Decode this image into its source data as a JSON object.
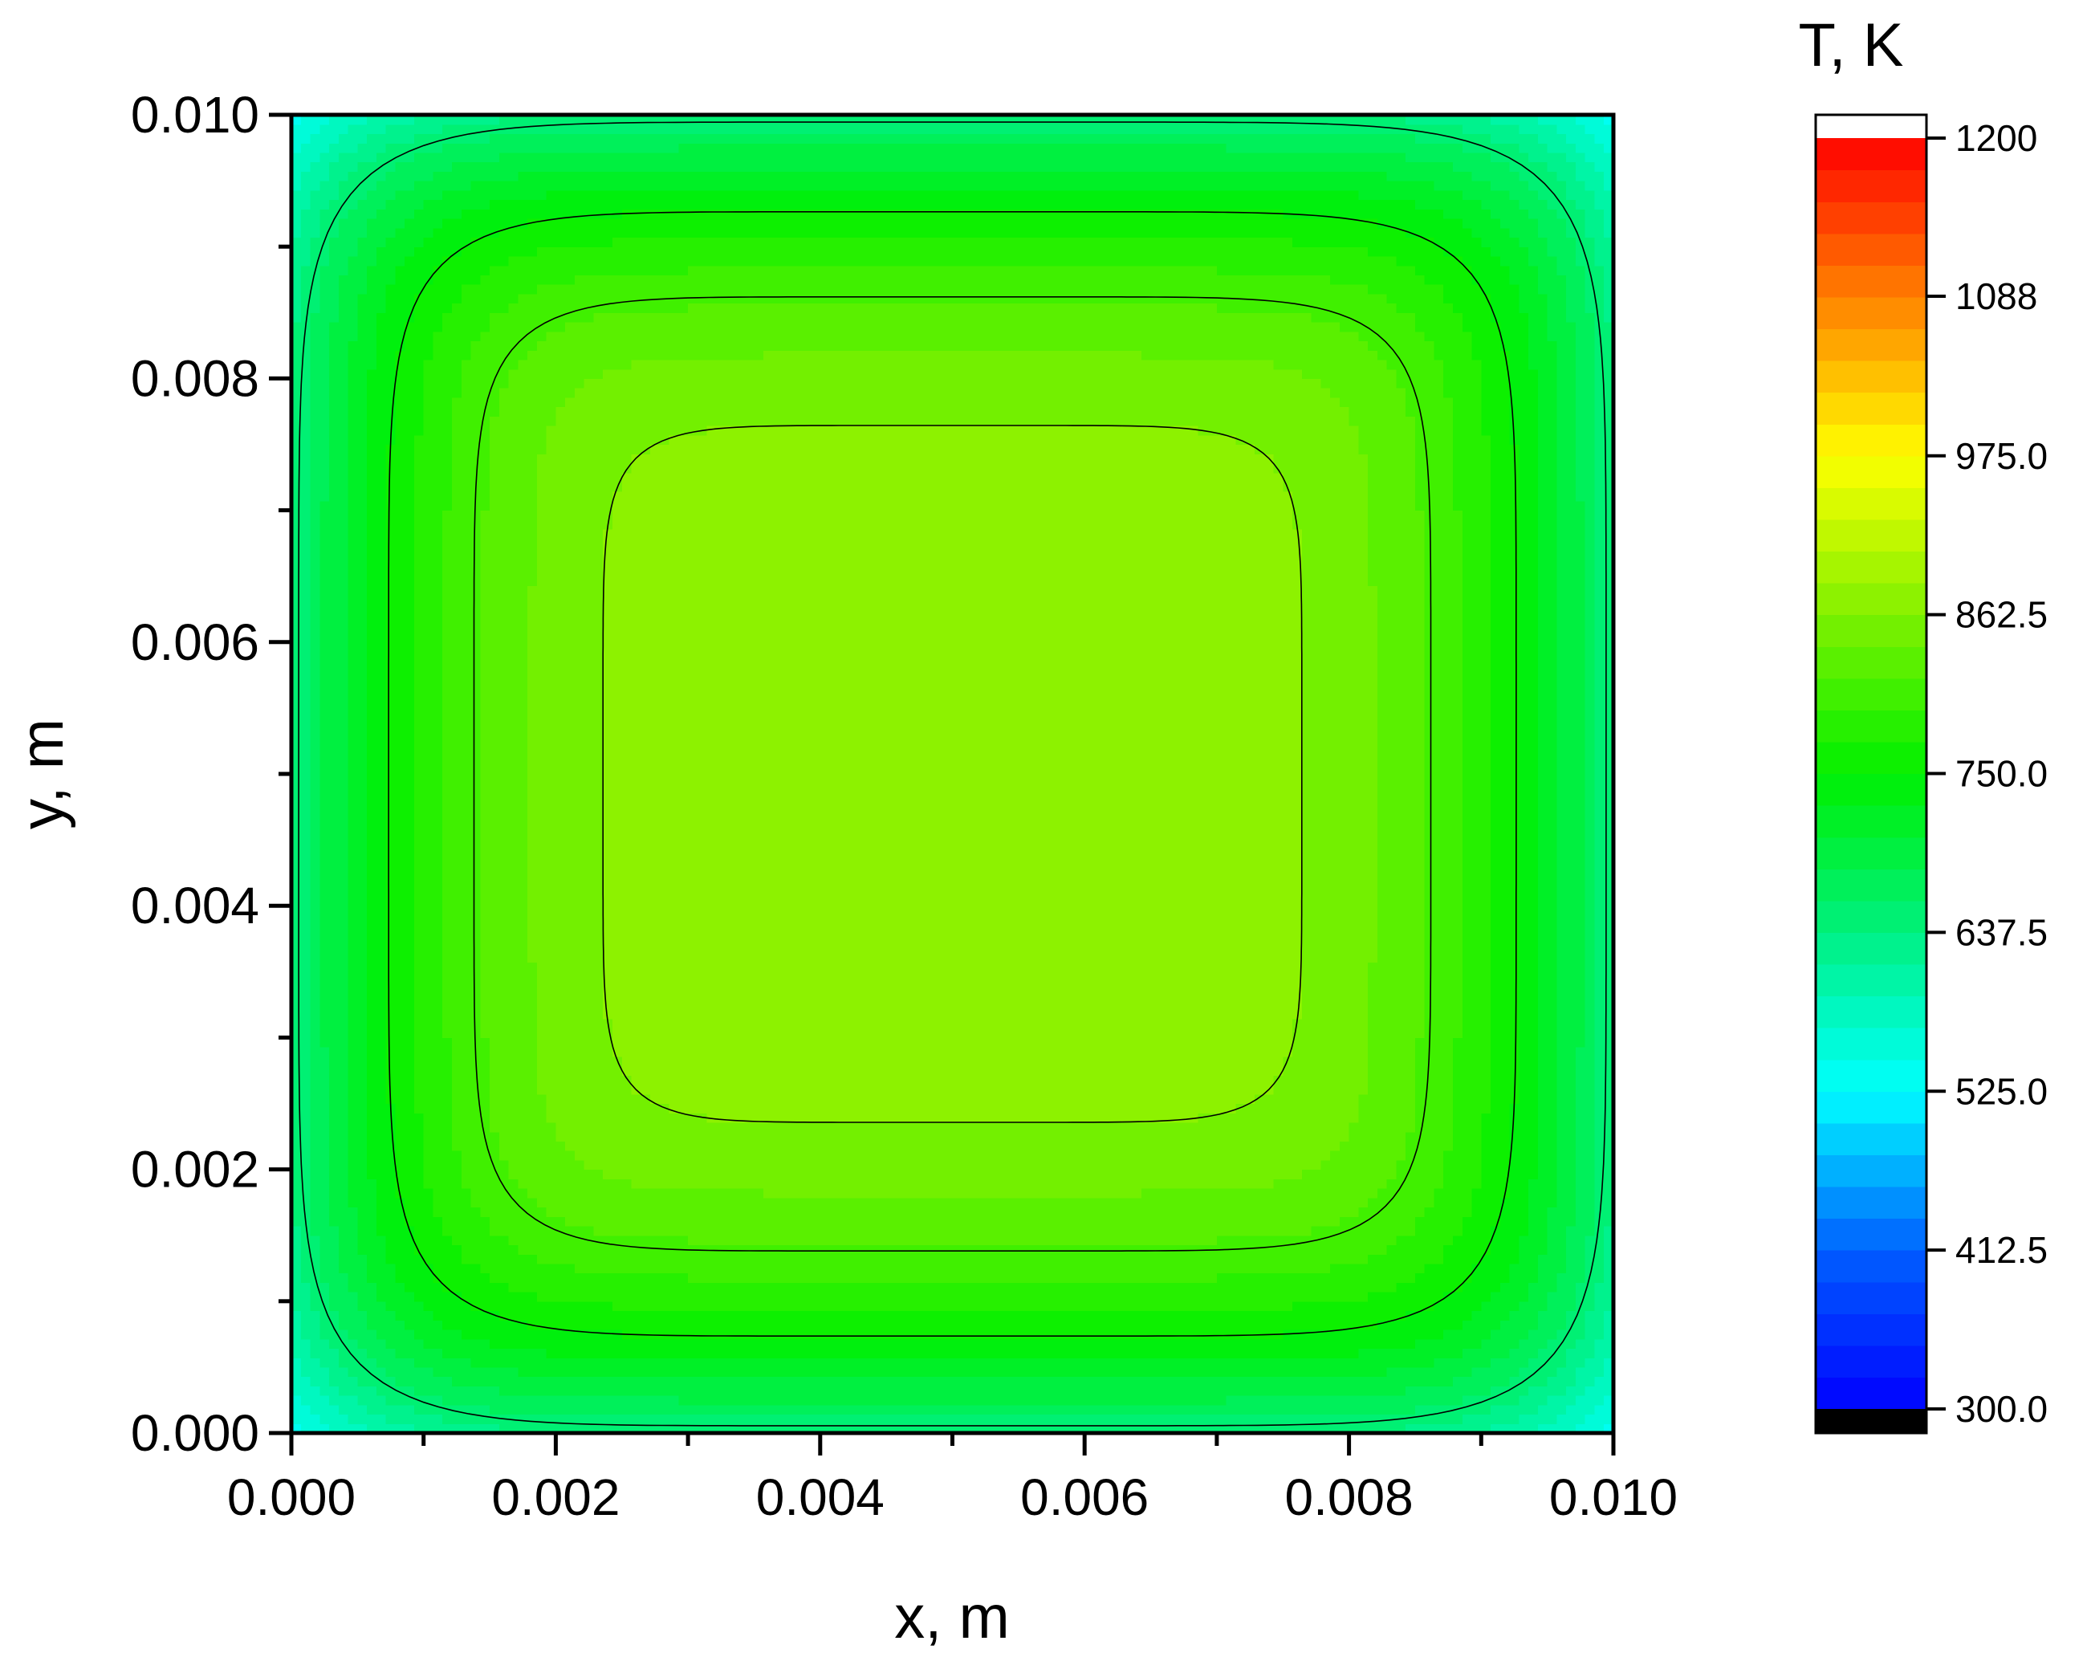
{
  "chart_data": {
    "type": "heatmap",
    "subtype": "filled-contour",
    "xlabel": "x, m",
    "ylabel": "y, m",
    "xlim": [
      0.0,
      0.01
    ],
    "ylim": [
      0.0,
      0.01
    ],
    "x_ticks": [
      "0.000",
      "0.002",
      "0.004",
      "0.006",
      "0.008",
      "0.010"
    ],
    "y_ticks": [
      "0.000",
      "0.002",
      "0.004",
      "0.006",
      "0.008",
      "0.010"
    ],
    "x_tick_values": [
      0.0,
      0.002,
      0.004,
      0.006,
      0.008,
      0.01
    ],
    "y_tick_values": [
      0.0,
      0.002,
      0.004,
      0.006,
      0.008,
      0.01
    ],
    "minor_ticks": true,
    "grid": false,
    "field": {
      "center_value": 885,
      "corner_value": 530,
      "description_values": {
        "center": 885,
        "edges": 640,
        "corners": 530
      }
    },
    "contour_lines": [
      {
        "level": 650
      },
      {
        "level": 750
      },
      {
        "level": 812
      },
      {
        "level": 862.5
      }
    ],
    "colorbar": {
      "title": "T, K",
      "min": 300.0,
      "max": 1200,
      "levels": 40,
      "tick_values": [
        300.0,
        412.5,
        525.0,
        637.5,
        750.0,
        862.5,
        975.0,
        1088,
        1200
      ],
      "tick_labels": [
        "300.0",
        "412.5",
        "525.0",
        "637.5",
        "750.0",
        "862.5",
        "975.0",
        "1088",
        "1200"
      ],
      "under_color": "#000000",
      "over_color": "#ffffff",
      "colormap": [
        {
          "v": 300.0,
          "c": "#0000ff"
        },
        {
          "v": 412.5,
          "c": "#0060ff"
        },
        {
          "v": 525.0,
          "c": "#00ffff"
        },
        {
          "v": 637.5,
          "c": "#00f080"
        },
        {
          "v": 750.0,
          "c": "#00f000"
        },
        {
          "v": 862.5,
          "c": "#80f000"
        },
        {
          "v": 975.0,
          "c": "#ffff00"
        },
        {
          "v": 1088,
          "c": "#ff8000"
        },
        {
          "v": 1200,
          "c": "#ff0000"
        }
      ]
    }
  }
}
